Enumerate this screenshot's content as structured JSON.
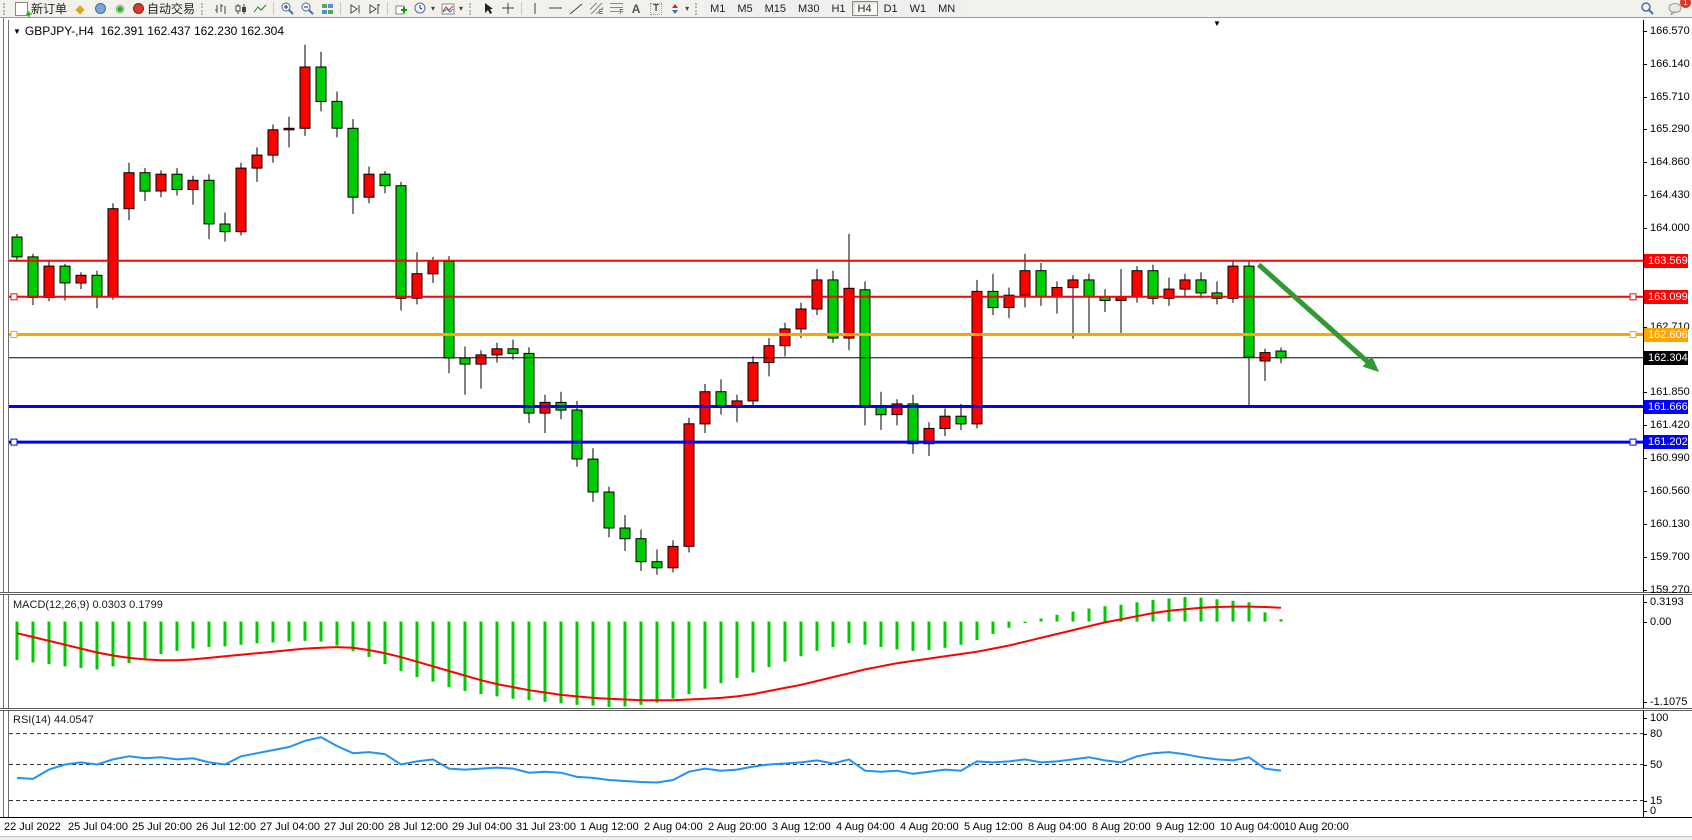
{
  "toolbar": {
    "new_order_label": "新订单",
    "auto_trading_label": "自动交易",
    "timeframes": [
      "M1",
      "M5",
      "M15",
      "M30",
      "H1",
      "H4",
      "D1",
      "W1",
      "MN"
    ],
    "active_timeframe": "H4",
    "notification_count": "1",
    "tool_icons": [
      "new-order",
      "styles",
      "publish",
      "signals",
      "auto-trading",
      "bar-chart",
      "candlestick-chart",
      "line-chart",
      "zoom-in",
      "zoom-out",
      "tile-windows",
      "auto-scroll",
      "chart-shift",
      "add-indicator",
      "periods",
      "templates",
      "cursor",
      "crosshair",
      "vertical-line",
      "horizontal-line",
      "trendline",
      "equidistant-channel",
      "fibonacci",
      "text",
      "text-label",
      "arrows",
      "search",
      "chat"
    ]
  },
  "chart": {
    "symbol": "GBPJPY-,H4",
    "ohlc": "162.391 162.437 162.230 162.304"
  },
  "chart_data": {
    "type": "candlestick",
    "title": "GBPJPY-,H4",
    "timeframe": "H4",
    "up_color": "#ff0000",
    "down_color": "#00ca00",
    "wick_color": "#000000",
    "y_max": 166.57,
    "y_min": 159.27,
    "y_ticks": [
      [
        "166.570",
        166.57
      ],
      [
        "166.140",
        166.14
      ],
      [
        "165.710",
        165.71
      ],
      [
        "165.290",
        165.29
      ],
      [
        "164.860",
        164.86
      ],
      [
        "164.430",
        164.43
      ],
      [
        "164.000",
        164.0
      ],
      [
        "162.710",
        162.71
      ],
      [
        "161.850",
        161.85
      ],
      [
        "161.420",
        161.42
      ],
      [
        "160.990",
        160.99
      ],
      [
        "160.560",
        160.56
      ],
      [
        "160.130",
        160.13
      ],
      [
        "159.700",
        159.7
      ],
      [
        "159.270",
        159.27
      ]
    ],
    "x_labels": [
      "22 Jul 2022",
      "25 Jul 04:00",
      "25 Jul 20:00",
      "26 Jul 12:00",
      "27 Jul 04:00",
      "27 Jul 20:00",
      "28 Jul 12:00",
      "29 Jul 04:00",
      "31 Jul 23:00",
      "1 Aug 12:00",
      "2 Aug 04:00",
      "2 Aug 20:00",
      "3 Aug 12:00",
      "4 Aug 04:00",
      "4 Aug 20:00",
      "5 Aug 12:00",
      "8 Aug 04:00",
      "8 Aug 20:00",
      "9 Aug 12:00",
      "10 Aug 04:00",
      "10 Aug 20:00"
    ],
    "bars_per_label": 4,
    "candles": [
      [
        163.88,
        163.92,
        163.58,
        163.62
      ],
      [
        163.62,
        163.66,
        162.99,
        163.09
      ],
      [
        163.09,
        163.58,
        163.04,
        163.5
      ],
      [
        163.5,
        163.53,
        163.05,
        163.28
      ],
      [
        163.28,
        163.42,
        163.2,
        163.38
      ],
      [
        163.38,
        163.44,
        162.95,
        163.1
      ],
      [
        163.1,
        164.32,
        163.06,
        164.25
      ],
      [
        164.25,
        164.85,
        164.1,
        164.72
      ],
      [
        164.72,
        164.78,
        164.35,
        164.48
      ],
      [
        164.48,
        164.75,
        164.4,
        164.7
      ],
      [
        164.7,
        164.78,
        164.42,
        164.5
      ],
      [
        164.5,
        164.68,
        164.3,
        164.62
      ],
      [
        164.62,
        164.7,
        163.85,
        164.05
      ],
      [
        164.05,
        164.2,
        163.82,
        163.95
      ],
      [
        163.95,
        164.85,
        163.9,
        164.78
      ],
      [
        164.78,
        165.05,
        164.6,
        164.95
      ],
      [
        164.95,
        165.35,
        164.85,
        165.28
      ],
      [
        165.28,
        165.45,
        165.05,
        165.3
      ],
      [
        165.3,
        166.39,
        165.2,
        166.1
      ],
      [
        166.1,
        166.3,
        165.52,
        165.65
      ],
      [
        165.65,
        165.78,
        165.18,
        165.3
      ],
      [
        165.3,
        165.42,
        164.18,
        164.4
      ],
      [
        164.4,
        164.8,
        164.32,
        164.7
      ],
      [
        164.7,
        164.74,
        164.45,
        164.55
      ],
      [
        164.55,
        164.6,
        162.92,
        163.08
      ],
      [
        163.08,
        163.68,
        163.0,
        163.4
      ],
      [
        163.4,
        163.62,
        163.28,
        163.56
      ],
      [
        163.56,
        163.63,
        162.1,
        162.3
      ],
      [
        162.3,
        162.45,
        161.82,
        162.22
      ],
      [
        162.22,
        162.4,
        161.9,
        162.34
      ],
      [
        162.34,
        162.5,
        162.24,
        162.42
      ],
      [
        162.42,
        162.54,
        162.28,
        162.36
      ],
      [
        162.36,
        162.44,
        161.45,
        161.58
      ],
      [
        161.58,
        161.82,
        161.32,
        161.72
      ],
      [
        161.72,
        161.86,
        161.5,
        161.62
      ],
      [
        161.62,
        161.74,
        160.88,
        160.98
      ],
      [
        160.98,
        161.12,
        160.42,
        160.55
      ],
      [
        160.55,
        160.62,
        159.96,
        160.08
      ],
      [
        160.08,
        160.25,
        159.78,
        159.94
      ],
      [
        159.94,
        160.06,
        159.52,
        159.64
      ],
      [
        159.64,
        159.8,
        159.47,
        159.56
      ],
      [
        159.56,
        159.92,
        159.5,
        159.84
      ],
      [
        159.84,
        161.52,
        159.76,
        161.44
      ],
      [
        161.44,
        161.96,
        161.32,
        161.86
      ],
      [
        161.86,
        162.02,
        161.56,
        161.66
      ],
      [
        161.66,
        161.82,
        161.46,
        161.74
      ],
      [
        161.74,
        162.32,
        161.68,
        162.24
      ],
      [
        162.24,
        162.56,
        162.06,
        162.46
      ],
      [
        162.46,
        162.76,
        162.32,
        162.68
      ],
      [
        162.68,
        163.02,
        162.56,
        162.94
      ],
      [
        162.94,
        163.46,
        162.86,
        163.32
      ],
      [
        163.32,
        163.44,
        162.5,
        162.56
      ],
      [
        162.56,
        163.92,
        162.4,
        163.21
      ],
      [
        163.19,
        163.3,
        161.42,
        161.66
      ],
      [
        161.66,
        161.86,
        161.36,
        161.56
      ],
      [
        161.56,
        161.76,
        161.42,
        161.7
      ],
      [
        161.7,
        161.82,
        161.05,
        161.18
      ],
      [
        161.18,
        161.46,
        161.02,
        161.38
      ],
      [
        161.38,
        161.64,
        161.28,
        161.54
      ],
      [
        161.54,
        161.7,
        161.36,
        161.44
      ],
      [
        161.44,
        163.32,
        161.38,
        163.17
      ],
      [
        163.17,
        163.4,
        162.86,
        162.96
      ],
      [
        162.96,
        163.22,
        162.82,
        163.12
      ],
      [
        163.12,
        163.66,
        162.96,
        163.44
      ],
      [
        163.44,
        163.54,
        162.98,
        163.1
      ],
      [
        163.1,
        163.3,
        162.88,
        163.22
      ],
      [
        163.22,
        163.38,
        162.55,
        163.32
      ],
      [
        163.32,
        163.4,
        162.62,
        163.1
      ],
      [
        163.1,
        163.2,
        162.9,
        163.05
      ],
      [
        163.05,
        163.46,
        162.6,
        163.1
      ],
      [
        163.1,
        163.5,
        163.02,
        163.44
      ],
      [
        163.44,
        163.52,
        163.0,
        163.08
      ],
      [
        163.08,
        163.35,
        162.98,
        163.2
      ],
      [
        163.2,
        163.4,
        163.1,
        163.32
      ],
      [
        163.32,
        163.42,
        163.08,
        163.15
      ],
      [
        163.15,
        163.3,
        163.0,
        163.08
      ],
      [
        163.08,
        163.57,
        163.02,
        163.5
      ],
      [
        163.5,
        163.56,
        161.65,
        162.31
      ],
      [
        162.26,
        162.42,
        162.0,
        162.37
      ],
      [
        162.391,
        162.437,
        162.23,
        162.304
      ]
    ],
    "hlines": [
      {
        "price": 163.569,
        "label": "163.569",
        "color": "#ff0000",
        "width": 2,
        "markers": false
      },
      {
        "price": 163.099,
        "label": "163.099",
        "color": "#ff0000",
        "width": 2,
        "markers": true
      },
      {
        "price": 162.606,
        "label": "162.606",
        "color": "#ffa500",
        "width": 3,
        "markers": true
      },
      {
        "price": 162.304,
        "label": "162.304",
        "color": "#000000",
        "width": 1,
        "markers": false
      },
      {
        "price": 161.666,
        "label": "161.666",
        "color": "#0000ff",
        "width": 3,
        "markers": false
      },
      {
        "price": 161.202,
        "label": "161.202",
        "color": "#0000ff",
        "width": 3,
        "markers": true
      }
    ],
    "arrow": {
      "from_bar": 77.6,
      "from_price": 163.52,
      "to_bar": 84.9,
      "to_price": 162.16,
      "color": "#339933",
      "width": 5
    },
    "macd": {
      "label": "MACD(12,26,9)",
      "values_display": "0.0303 0.1799",
      "scale_labels": [
        [
          "0.3193",
          0.3193
        ],
        [
          "0.00",
          0
        ],
        [
          "-1.1075",
          -1.1075
        ]
      ],
      "max": 0.3193,
      "min": -1.1075,
      "histogram_color": "#00ca00",
      "signal_color": "#ff0000",
      "histogram": [
        -0.5,
        -0.53,
        -0.55,
        -0.58,
        -0.6,
        -0.62,
        -0.58,
        -0.54,
        -0.48,
        -0.42,
        -0.38,
        -0.35,
        -0.33,
        -0.32,
        -0.3,
        -0.28,
        -0.27,
        -0.26,
        -0.25,
        -0.26,
        -0.31,
        -0.38,
        -0.46,
        -0.55,
        -0.64,
        -0.72,
        -0.78,
        -0.85,
        -0.9,
        -0.94,
        -0.97,
        -1.0,
        -1.02,
        -1.04,
        -1.06,
        -1.08,
        -1.09,
        -1.1075,
        -1.1,
        -1.08,
        -1.05,
        -1.0,
        -0.94,
        -0.87,
        -0.8,
        -0.73,
        -0.66,
        -0.59,
        -0.52,
        -0.45,
        -0.38,
        -0.33,
        -0.28,
        -0.3,
        -0.33,
        -0.36,
        -0.38,
        -0.37,
        -0.34,
        -0.3,
        -0.24,
        -0.16,
        -0.08,
        -0.02,
        0.04,
        0.09,
        0.13,
        0.17,
        0.2,
        0.22,
        0.25,
        0.28,
        0.3,
        0.3193,
        0.31,
        0.29,
        0.27,
        0.25,
        0.12,
        0.0303
      ],
      "signal": [
        -0.15,
        -0.2,
        -0.25,
        -0.3,
        -0.35,
        -0.4,
        -0.44,
        -0.47,
        -0.49,
        -0.5,
        -0.5,
        -0.49,
        -0.47,
        -0.45,
        -0.43,
        -0.41,
        -0.39,
        -0.37,
        -0.35,
        -0.34,
        -0.33,
        -0.34,
        -0.37,
        -0.41,
        -0.46,
        -0.52,
        -0.58,
        -0.64,
        -0.7,
        -0.76,
        -0.81,
        -0.85,
        -0.89,
        -0.92,
        -0.95,
        -0.97,
        -0.99,
        -1.0,
        -1.01,
        -1.02,
        -1.02,
        -1.02,
        -1.01,
        -1.0,
        -0.99,
        -0.97,
        -0.94,
        -0.9,
        -0.86,
        -0.82,
        -0.77,
        -0.72,
        -0.67,
        -0.62,
        -0.58,
        -0.54,
        -0.51,
        -0.48,
        -0.45,
        -0.42,
        -0.39,
        -0.35,
        -0.31,
        -0.26,
        -0.21,
        -0.16,
        -0.11,
        -0.06,
        -0.01,
        0.03,
        0.07,
        0.11,
        0.14,
        0.16,
        0.18,
        0.19,
        0.195,
        0.195,
        0.19,
        0.1799
      ]
    },
    "rsi": {
      "label": "RSI(14)",
      "value_display": "44.0547",
      "levels": [
        80,
        50,
        15
      ],
      "scale_labels": [
        [
          "100",
          100
        ],
        [
          "80",
          80
        ],
        [
          "50",
          50
        ],
        [
          "15",
          15
        ],
        [
          "0",
          0
        ]
      ],
      "line_color": "#2492f0",
      "max": 100,
      "min": 0,
      "values": [
        37,
        36,
        45,
        50,
        52,
        50,
        55,
        58,
        56,
        57,
        55,
        56,
        52,
        50,
        58,
        61,
        64,
        67,
        73,
        76.5,
        68,
        61,
        62,
        60,
        50,
        53,
        55,
        46,
        45,
        46,
        47,
        46,
        42,
        43,
        42,
        38,
        37,
        35,
        34,
        33,
        32.5,
        35,
        43,
        46,
        44,
        45,
        48,
        50,
        51,
        52,
        54,
        51,
        55,
        44,
        43,
        44,
        41,
        43,
        45,
        44,
        53,
        52,
        53,
        55,
        52,
        53,
        55,
        57,
        54,
        52,
        58,
        61,
        62,
        60,
        57,
        55,
        54,
        57,
        46,
        44.0547
      ]
    }
  }
}
